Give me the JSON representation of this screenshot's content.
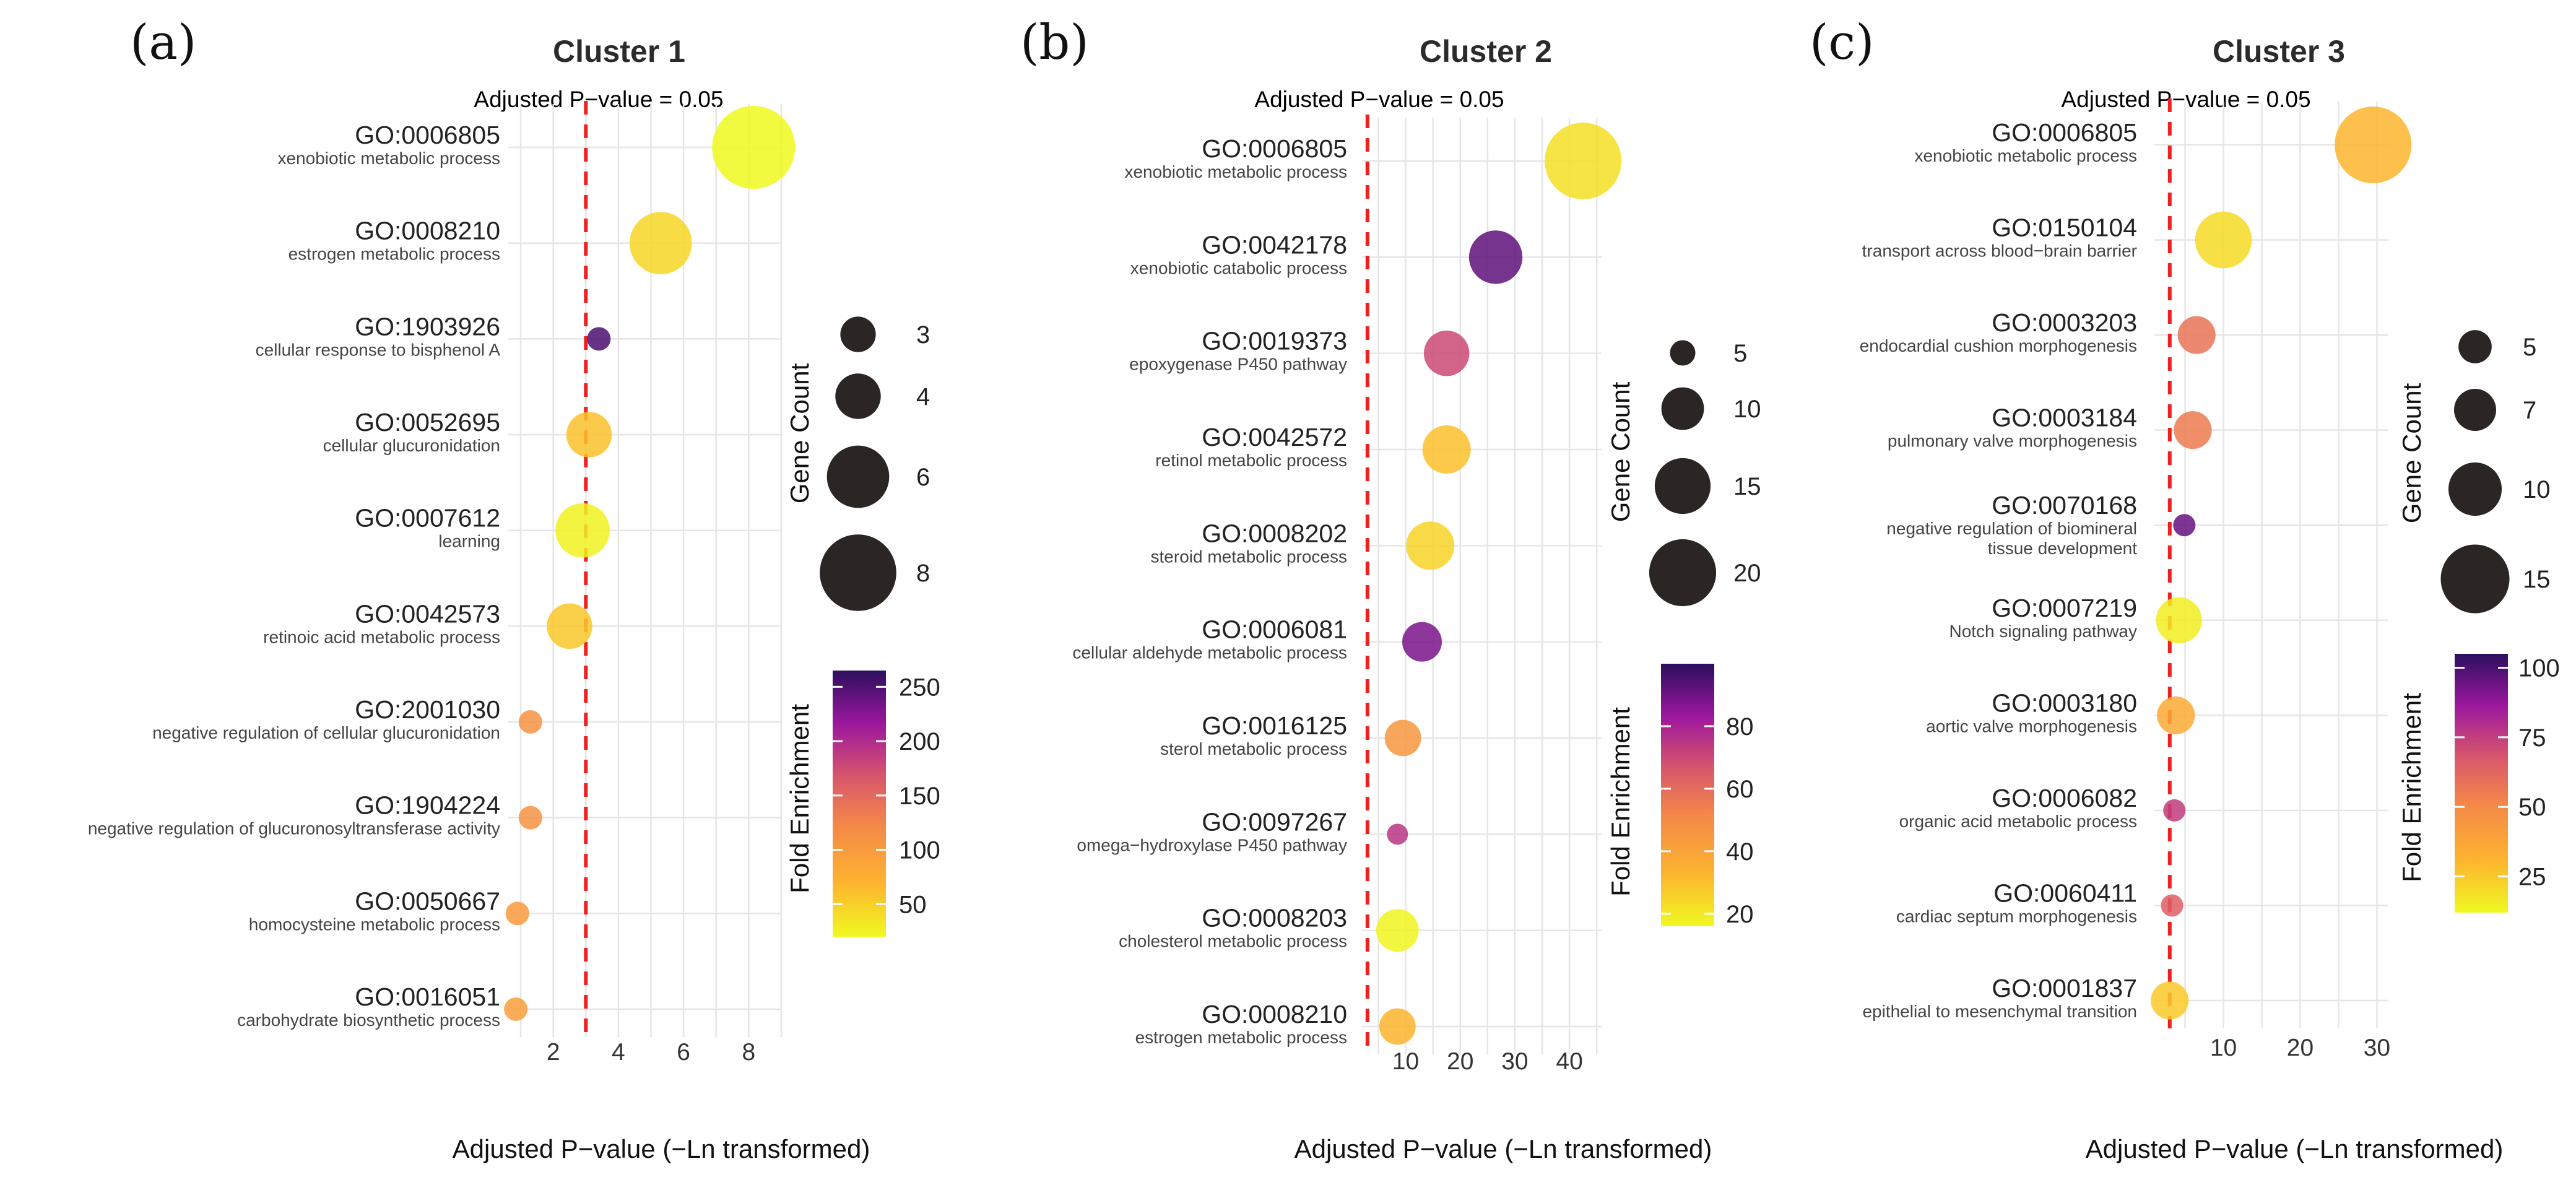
{
  "chart_data": [
    {
      "type": "scatter",
      "panel": "(a)",
      "title": "Cluster 1",
      "threshold_label": "Adjusted P−value = 0.05",
      "threshold": 3.0,
      "xlabel": "Adjusted P−value (−Ln transformed)",
      "xlim": [
        0.6,
        9.0
      ],
      "xticks": [
        2,
        4,
        6,
        8
      ],
      "terms": [
        {
          "id": "GO:0006805",
          "desc": [
            "xenobiotic metabolic process"
          ],
          "x": 8.15,
          "count": 9,
          "fold": 20
        },
        {
          "id": "GO:0008210",
          "desc": [
            "estrogen metabolic process"
          ],
          "x": 5.3,
          "count": 6,
          "fold": 45
        },
        {
          "id": "GO:1903926",
          "desc": [
            "cellular response to bisphenol A"
          ],
          "x": 3.4,
          "count": 2,
          "fold": 250
        },
        {
          "id": "GO:0052695",
          "desc": [
            "cellular glucuronidation"
          ],
          "x": 3.1,
          "count": 4,
          "fold": 60
        },
        {
          "id": "GO:0007612",
          "desc": [
            "learning"
          ],
          "x": 2.9,
          "count": 5,
          "fold": 25
        },
        {
          "id": "GO:0042573",
          "desc": [
            "retinoic acid metabolic process"
          ],
          "x": 2.5,
          "count": 4,
          "fold": 55
        },
        {
          "id": "GO:2001030",
          "desc": [
            "negative regulation of cellular glucuronidation"
          ],
          "x": 1.3,
          "count": 2,
          "fold": 110
        },
        {
          "id": "GO:1904224",
          "desc": [
            "negative regulation of glucuronosyltransferase activity"
          ],
          "x": 1.3,
          "count": 2,
          "fold": 110
        },
        {
          "id": "GO:0050667",
          "desc": [
            "homocysteine metabolic process"
          ],
          "x": 0.9,
          "count": 2,
          "fold": 100
        },
        {
          "id": "GO:0016051",
          "desc": [
            "carbohydrate biosynthetic process"
          ],
          "x": 0.85,
          "count": 2,
          "fold": 95
        }
      ],
      "size_legend": {
        "title": "Gene Count",
        "values": [
          3,
          4,
          6,
          8
        ]
      },
      "color_legend": {
        "title": "Fold Enrichment",
        "min": 20,
        "max": 265,
        "ticks": [
          50,
          100,
          150,
          200,
          250
        ]
      }
    },
    {
      "type": "scatter",
      "panel": "(b)",
      "title": "Cluster 2",
      "threshold_label": "Adjusted P−value = 0.05",
      "threshold": 3.0,
      "xlabel": "Adjusted P−value (−Ln transformed)",
      "xlim": [
        2.0,
        46.0
      ],
      "xticks": [
        10,
        20,
        30,
        40
      ],
      "terms": [
        {
          "id": "GO:0006805",
          "desc": [
            "xenobiotic metabolic process"
          ],
          "x": 42.5,
          "count": 25,
          "fold": 22
        },
        {
          "id": "GO:0042178",
          "desc": [
            "xenobiotic catabolic process"
          ],
          "x": 26.5,
          "count": 14,
          "fold": 92
        },
        {
          "id": "GO:0019373",
          "desc": [
            "epoxygenase P450 pathway"
          ],
          "x": 17.5,
          "count": 11,
          "fold": 70
        },
        {
          "id": "GO:0042572",
          "desc": [
            "retinol metabolic process"
          ],
          "x": 17.5,
          "count": 12,
          "fold": 30
        },
        {
          "id": "GO:0008202",
          "desc": [
            "steroid metabolic process"
          ],
          "x": 14.5,
          "count": 12,
          "fold": 25
        },
        {
          "id": "GO:0006081",
          "desc": [
            "cellular aldehyde metabolic process"
          ],
          "x": 13.0,
          "count": 9,
          "fold": 88
        },
        {
          "id": "GO:0016125",
          "desc": [
            "sterol metabolic process"
          ],
          "x": 9.5,
          "count": 8,
          "fold": 45
        },
        {
          "id": "GO:0097267",
          "desc": [
            "omega−hydroxylase P450 pathway"
          ],
          "x": 8.5,
          "count": 4,
          "fold": 75
        },
        {
          "id": "GO:0008203",
          "desc": [
            "cholesterol metabolic process"
          ],
          "x": 8.5,
          "count": 10,
          "fold": 17
        },
        {
          "id": "GO:0008210",
          "desc": [
            "estrogen metabolic process"
          ],
          "x": 8.5,
          "count": 8,
          "fold": 33
        }
      ],
      "size_legend": {
        "title": "Gene Count",
        "values": [
          5,
          10,
          15,
          20
        ]
      },
      "color_legend": {
        "title": "Fold Enrichment",
        "min": 16,
        "max": 100,
        "ticks": [
          20,
          40,
          60,
          80
        ]
      }
    },
    {
      "type": "scatter",
      "panel": "(c)",
      "title": "Cluster 3",
      "threshold_label": "Adjusted P−value = 0.05",
      "threshold": 3.0,
      "xlabel": "Adjusted P−value (−Ln transformed)",
      "xlim": [
        1.0,
        31.5
      ],
      "xticks": [
        10,
        20,
        30
      ],
      "terms": [
        {
          "id": "GO:0006805",
          "desc": [
            "xenobiotic metabolic process"
          ],
          "x": 29.5,
          "count": 18,
          "fold": 30
        },
        {
          "id": "GO:0150104",
          "desc": [
            "transport across blood−brain barrier"
          ],
          "x": 10.0,
          "count": 11,
          "fold": 20
        },
        {
          "id": "GO:0003203",
          "desc": [
            "endocardial cushion morphogenesis"
          ],
          "x": 6.5,
          "count": 6,
          "fold": 58
        },
        {
          "id": "GO:0003184",
          "desc": [
            "pulmonary valve morphogenesis"
          ],
          "x": 6.0,
          "count": 6,
          "fold": 55
        },
        {
          "id": "GO:0070168",
          "desc": [
            "negative regulation of biomineral",
            "tissue development"
          ],
          "x": 4.9,
          "count": 3,
          "fold": 95
        },
        {
          "id": "GO:0007219",
          "desc": [
            "Notch signaling pathway"
          ],
          "x": 4.2,
          "count": 8,
          "fold": 15
        },
        {
          "id": "GO:0003180",
          "desc": [
            "aortic valve morphogenesis"
          ],
          "x": 3.8,
          "count": 6,
          "fold": 35
        },
        {
          "id": "GO:0006082",
          "desc": [
            "organic acid metabolic process"
          ],
          "x": 3.6,
          "count": 3,
          "fold": 75
        },
        {
          "id": "GO:0060411",
          "desc": [
            "cardiac septum morphogenesis"
          ],
          "x": 3.3,
          "count": 3,
          "fold": 65
        },
        {
          "id": "GO:0001837",
          "desc": [
            "epithelial to mesenchymal transition"
          ],
          "x": 3.0,
          "count": 6,
          "fold": 25
        }
      ],
      "size_legend": {
        "title": "Gene Count",
        "values": [
          5,
          7,
          10,
          15
        ]
      },
      "color_legend": {
        "title": "Fold Enrichment",
        "min": 12,
        "max": 105,
        "ticks": [
          25,
          50,
          75,
          100
        ]
      }
    }
  ]
}
